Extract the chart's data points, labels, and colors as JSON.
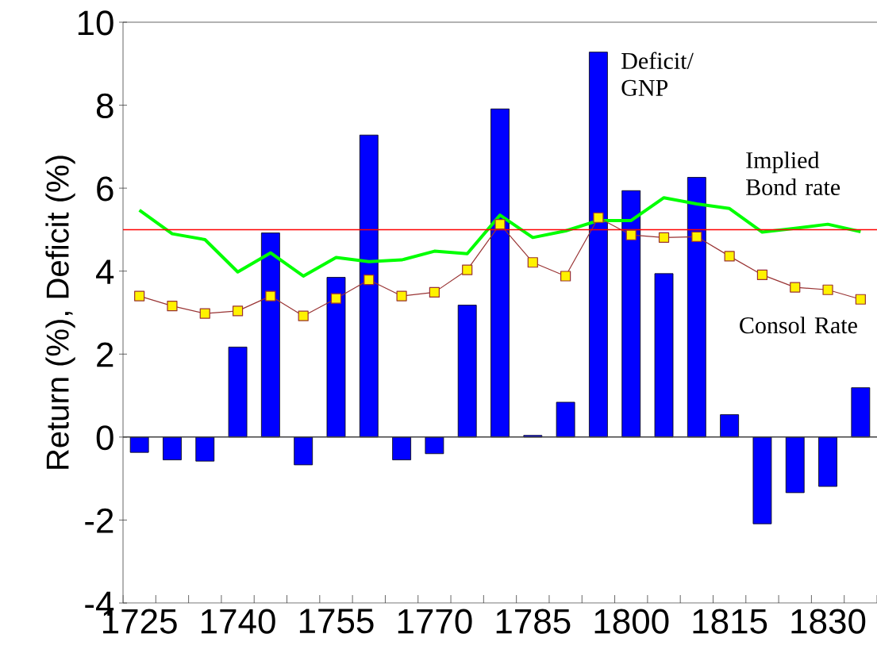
{
  "chart_data": {
    "type": "bar",
    "ylabel": "Return (%), Deficit (%)",
    "categories": [
      "1725",
      null,
      null,
      "1740",
      null,
      null,
      "1755",
      null,
      null,
      "1770",
      null,
      null,
      "1785",
      null,
      null,
      "1800",
      null,
      null,
      "1815",
      null,
      null,
      "1830",
      null
    ],
    "ylim": [
      -4,
      10
    ],
    "yticks": [
      -4,
      -2,
      0,
      2,
      4,
      6,
      8,
      10
    ],
    "series": [
      {
        "name": "Deficit/ GNP",
        "type": "bar",
        "color": "#0000ff",
        "values": [
          -0.37,
          -0.55,
          -0.58,
          2.17,
          4.92,
          -0.67,
          3.85,
          7.28,
          -0.55,
          -0.4,
          3.18,
          7.91,
          0.04,
          0.84,
          9.28,
          5.94,
          3.94,
          6.26,
          0.54,
          -2.09,
          -1.34,
          -1.19,
          1.19
        ]
      },
      {
        "name": "Implied Bond rate",
        "type": "line",
        "color": "#00ff00",
        "marker": "none",
        "values": [
          5.47,
          4.9,
          4.76,
          3.98,
          4.44,
          3.88,
          4.33,
          4.23,
          4.27,
          4.48,
          4.42,
          5.35,
          4.81,
          4.97,
          5.22,
          5.22,
          5.77,
          5.62,
          5.51,
          4.94,
          5.03,
          5.13,
          4.95
        ]
      },
      {
        "name": "Consol Rate",
        "type": "line",
        "color": "#993333",
        "marker": "square",
        "values": [
          3.4,
          3.16,
          2.98,
          3.04,
          3.4,
          2.92,
          3.34,
          3.79,
          3.4,
          3.49,
          4.03,
          5.13,
          4.21,
          3.88,
          5.29,
          4.87,
          4.81,
          4.83,
          4.36,
          3.91,
          3.61,
          3.55,
          3.32
        ]
      }
    ],
    "ref_lines": [
      {
        "axis": "y",
        "value": 5,
        "color": "#ff0000"
      },
      {
        "axis": "y",
        "value": 0,
        "color": "#404040"
      }
    ]
  }
}
